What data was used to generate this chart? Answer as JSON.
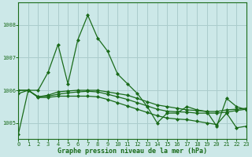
{
  "title": "Graphe pression niveau de la mer (hPa)",
  "background_color": "#cce8e8",
  "plot_bg_color": "#cce8e8",
  "line_color": "#1a6b1a",
  "grid_color": "#aacccc",
  "text_color": "#1a6b1a",
  "ylim": [
    1004.5,
    1008.7
  ],
  "yticks": [
    1005,
    1006,
    1007,
    1008
  ],
  "xlim": [
    0,
    23
  ],
  "xticks": [
    0,
    1,
    2,
    3,
    4,
    5,
    6,
    7,
    8,
    9,
    10,
    11,
    12,
    13,
    14,
    15,
    16,
    17,
    18,
    19,
    20,
    21,
    22,
    23
  ],
  "series": [
    [
      1004.65,
      1006.0,
      1006.0,
      1006.55,
      1007.4,
      1006.2,
      1007.55,
      1008.3,
      1007.6,
      1007.2,
      1006.5,
      1006.2,
      1005.9,
      1005.5,
      1005.0,
      1005.3,
      1005.3,
      1005.5,
      1005.4,
      1005.35,
      1004.9,
      1005.75,
      1005.5,
      1005.4
    ],
    [
      1006.0,
      1006.0,
      1005.8,
      1005.85,
      1005.95,
      1005.98,
      1006.0,
      1006.0,
      1006.0,
      1005.95,
      1005.9,
      1005.85,
      1005.75,
      1005.65,
      1005.55,
      1005.5,
      1005.45,
      1005.4,
      1005.38,
      1005.35,
      1005.35,
      1005.4,
      1005.42,
      1005.45
    ],
    [
      1006.0,
      1006.0,
      1005.8,
      1005.82,
      1005.88,
      1005.92,
      1005.95,
      1005.97,
      1005.95,
      1005.88,
      1005.8,
      1005.72,
      1005.62,
      1005.52,
      1005.42,
      1005.36,
      1005.34,
      1005.33,
      1005.3,
      1005.3,
      1005.3,
      1005.33,
      1005.38,
      1005.42
    ],
    [
      1005.9,
      1006.0,
      1005.78,
      1005.78,
      1005.82,
      1005.82,
      1005.82,
      1005.82,
      1005.8,
      1005.72,
      1005.62,
      1005.52,
      1005.42,
      1005.32,
      1005.22,
      1005.15,
      1005.12,
      1005.1,
      1005.05,
      1005.0,
      1004.95,
      1005.3,
      1004.85,
      1004.9
    ]
  ]
}
